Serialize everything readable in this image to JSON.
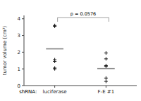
{
  "chart_data": {
    "type": "dot",
    "categories": [
      "luciferase",
      "F-E #1"
    ],
    "series": [
      {
        "type": "scatter",
        "marker": "plus",
        "color": "#111111",
        "values": [
          [
            3.6,
            3.55,
            1.45,
            1.55,
            1.0,
            1.05
          ],
          [
            1.6,
            1.2,
            1.15,
            1.95,
            0.45,
            0.25
          ]
        ]
      },
      {
        "type": "mean",
        "color": "#888888",
        "values": [
          2.2,
          1.02
        ]
      }
    ],
    "ylabel": "tumor volume (cm³)",
    "ylim": [
      0,
      4.2
    ],
    "yticks": [
      0,
      1,
      2,
      3,
      4
    ],
    "annotations": [
      {
        "text": "shRNA:"
      },
      {
        "text": "p = 0.0576",
        "bracket": [
          0,
          1
        ],
        "color": "#888888"
      }
    ]
  }
}
